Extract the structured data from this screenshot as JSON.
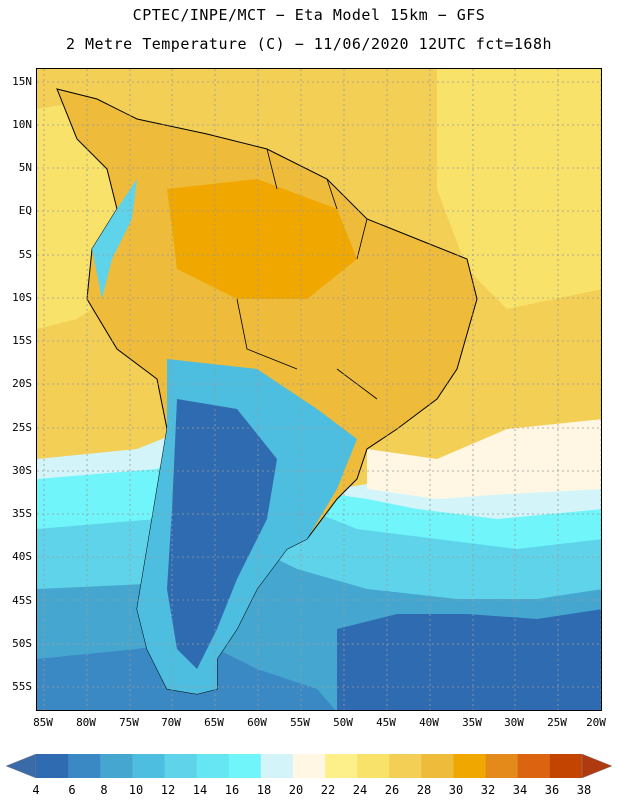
{
  "title": {
    "line1": "CPTEC/INPE/MCT −  Eta Model 15km − GFS",
    "line2": "2 Metre Temperature (C) − 11/06/2020 12UTC fct=168h"
  },
  "map": {
    "variable": "2 Metre Temperature",
    "units": "C",
    "region": "South America",
    "lat_range": [
      -58,
      17
    ],
    "lon_range": [
      -86,
      -20
    ],
    "lat_labels": [
      "15N",
      "10N",
      "5N",
      "EQ",
      "5S",
      "10S",
      "15S",
      "20S",
      "25S",
      "30S",
      "35S",
      "40S",
      "45S",
      "50S",
      "55S"
    ],
    "lat_values": [
      15,
      10,
      5,
      0,
      -5,
      -10,
      -15,
      -20,
      -25,
      -30,
      -35,
      -40,
      -45,
      -50,
      -55
    ],
    "lon_labels": [
      "85W",
      "80W",
      "75W",
      "70W",
      "65W",
      "60W",
      "55W",
      "50W",
      "45W",
      "40W",
      "35W",
      "30W",
      "25W",
      "20W"
    ],
    "lon_values": [
      -85,
      -80,
      -75,
      -70,
      -65,
      -60,
      -55,
      -50,
      -45,
      -40,
      -35,
      -30,
      -25,
      -20
    ]
  },
  "colorbar": {
    "levels": [
      "4",
      "6",
      "8",
      "10",
      "12",
      "14",
      "16",
      "18",
      "20",
      "22",
      "24",
      "26",
      "28",
      "30",
      "32",
      "34",
      "36",
      "38"
    ],
    "colors": [
      "#3a6aa8",
      "#2f6bb0",
      "#3a88c4",
      "#45a6d0",
      "#4dbde0",
      "#5fd3ea",
      "#66e6f2",
      "#6ff5fa",
      "#d3f5fa",
      "#fff6e3",
      "#fdf08a",
      "#f9e26a",
      "#f3cf55",
      "#eebb3a",
      "#f0a800",
      "#e48a1a",
      "#dc6410",
      "#c24400",
      "#b03a10"
    ]
  }
}
